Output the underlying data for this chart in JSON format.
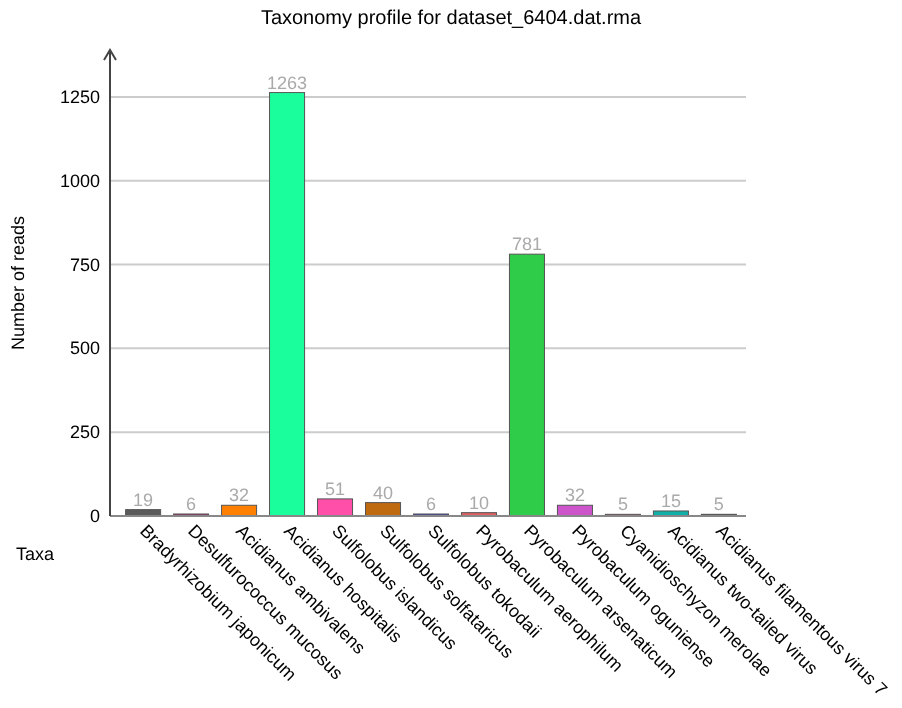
{
  "chart_data": {
    "type": "bar",
    "title": "Taxonomy profile for dataset_6404.dat.rma",
    "xlabel": "Taxa",
    "ylabel": "Number of reads",
    "categories": [
      "Bradyrhizobium japonicum",
      "Desulfurococcus mucosus",
      "Acidianus ambivalens",
      "Acidianus hospitalis",
      "Sulfolobus islandicus",
      "Sulfolobus solfataricus",
      "Sulfolobus tokodaii",
      "Pyrobaculum aerophilum",
      "Pyrobaculum arsenaticum",
      "Pyrobaculum oguniense",
      "Cyanidioschyzon merolae",
      "Acidianus two-tailed virus",
      "Acidianus filamentous virus 7"
    ],
    "values": [
      19,
      6,
      32,
      1263,
      51,
      40,
      6,
      10,
      781,
      32,
      5,
      15,
      5
    ],
    "colors": [
      "#5a5a5a",
      "#a03070",
      "#ff8000",
      "#1aff9c",
      "#ff4fa8",
      "#c06a10",
      "#4848c0",
      "#e06060",
      "#2ecc48",
      "#cc55cc",
      "#d04050",
      "#10b0a8",
      "#222222"
    ],
    "ylim": [
      0,
      1390
    ],
    "yticks": [
      0,
      250,
      500,
      750,
      1000,
      1250
    ],
    "grid": "y",
    "data_labels": true
  }
}
